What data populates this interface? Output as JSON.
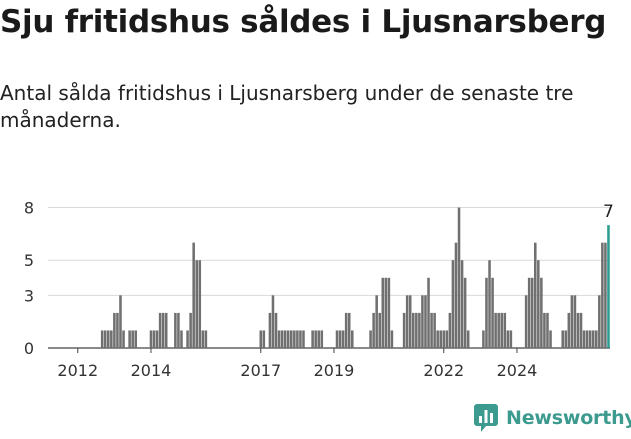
{
  "title": "Sju fritidshus såldes i Ljusnarsberg",
  "subtitle": "Antal sålda fritidshus i Ljusnarsberg under de senaste tre månaderna.",
  "brand": {
    "name": "Newsworthy",
    "logo_icon": "newsworthy-chart-icon"
  },
  "colors": {
    "bar": "#707070",
    "highlight": "#2a9d8f",
    "grid": "#d9d9d9",
    "brand": "#3c9a8f"
  },
  "chart_data": {
    "type": "bar",
    "ylim": [
      0,
      9
    ],
    "yticks": [
      0,
      3,
      5,
      8
    ],
    "xticks": [
      "2012",
      "2014",
      "2017",
      "2019",
      "2022",
      "2024"
    ],
    "grid": true,
    "highlight_label": "7",
    "start_index": 0,
    "values": [
      0,
      0,
      0,
      0,
      0,
      0,
      0,
      0,
      1,
      1,
      1,
      1,
      2,
      2,
      3,
      1,
      0,
      1,
      1,
      1,
      0,
      0,
      0,
      0,
      1,
      1,
      1,
      2,
      2,
      2,
      0,
      0,
      2,
      2,
      1,
      0,
      1,
      2,
      6,
      5,
      5,
      1,
      1,
      0,
      0,
      0,
      0,
      0,
      0,
      0,
      0,
      0,
      0,
      0,
      0,
      0,
      0,
      0,
      0,
      0,
      1,
      1,
      0,
      2,
      3,
      2,
      1,
      1,
      1,
      1,
      1,
      1,
      1,
      1,
      1,
      0,
      0,
      1,
      1,
      1,
      1,
      0,
      0,
      0,
      0,
      1,
      1,
      1,
      2,
      2,
      1,
      0,
      0,
      0,
      0,
      0,
      1,
      2,
      3,
      2,
      4,
      4,
      4,
      1,
      0,
      0,
      0,
      2,
      3,
      3,
      2,
      2,
      2,
      3,
      3,
      4,
      2,
      2,
      1,
      1,
      1,
      1,
      2,
      5,
      6,
      8,
      5,
      4,
      1,
      0,
      0,
      0,
      0,
      1,
      4,
      5,
      4,
      2,
      2,
      2,
      2,
      1,
      1,
      0,
      0,
      0,
      0,
      3,
      4,
      4,
      6,
      5,
      4,
      2,
      2,
      1,
      0,
      0,
      0,
      1,
      1,
      2,
      3,
      3,
      2,
      2,
      1,
      1,
      1,
      1,
      1,
      3,
      6,
      6,
      7
    ]
  }
}
